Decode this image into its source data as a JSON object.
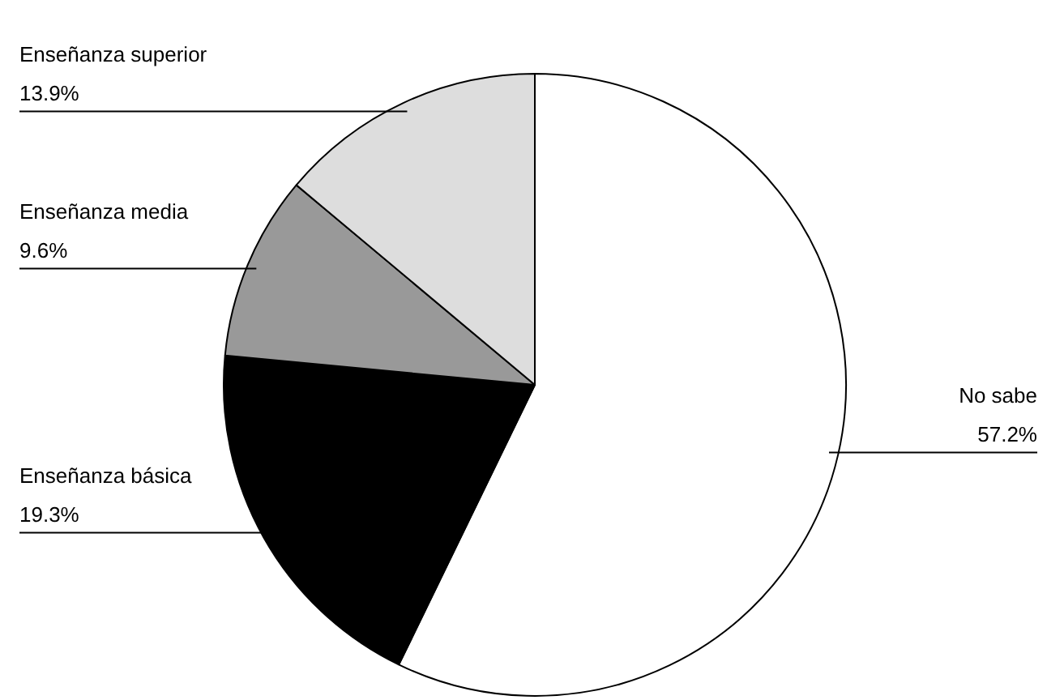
{
  "chart_data": {
    "type": "pie",
    "categories": [
      "No sabe",
      "Enseñanza básica",
      "Enseñanza media",
      "Enseñanza superior"
    ],
    "values": [
      57.2,
      19.3,
      9.6,
      13.9
    ],
    "colors": [
      "#ffffff",
      "#000000",
      "#999999",
      "#dddddd"
    ],
    "value_labels": [
      "57.2%",
      "19.3%",
      "9.6%",
      "13.9%"
    ],
    "legend": false
  }
}
